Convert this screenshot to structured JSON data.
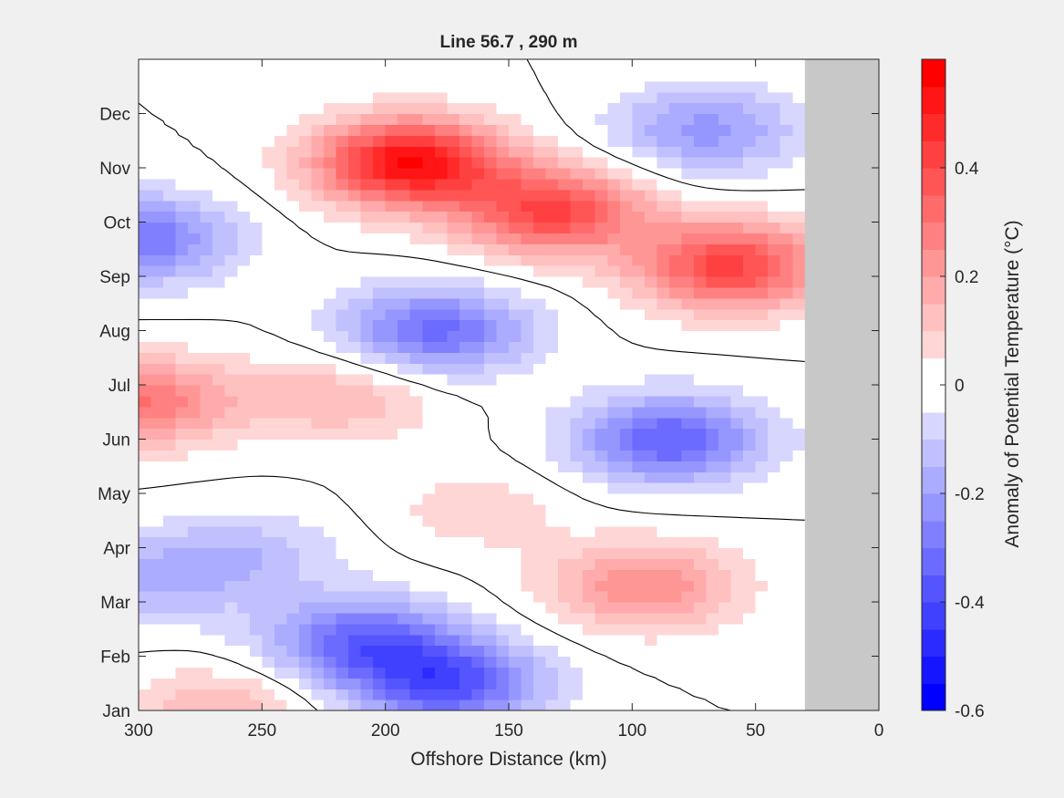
{
  "chart_data": {
    "type": "heatmap",
    "title": "Line 56.7 , 290 m",
    "xlabel": "Offshore Distance (km)",
    "ylabel": "",
    "x_reversed": true,
    "xlim": [
      300,
      0
    ],
    "x_ticks": [
      300,
      250,
      200,
      150,
      100,
      50,
      0
    ],
    "y_ticks": [
      "Jan",
      "Feb",
      "Mar",
      "Apr",
      "May",
      "Jun",
      "Jul",
      "Aug",
      "Sep",
      "Oct",
      "Nov",
      "Dec"
    ],
    "data_extent_km": [
      300,
      30
    ],
    "no_data_region_km": [
      30,
      0
    ],
    "colorbar": {
      "label": "Anomaly of Potential Temperature (°C)",
      "clim": [
        -0.6,
        0.6
      ],
      "step": 0.05,
      "tick_values": [
        0.4,
        0.2,
        0,
        -0.2,
        -0.4,
        -0.6
      ],
      "tick_labels": [
        "0.4",
        "0.2",
        "0",
        "-0.2",
        "-0.4",
        "-0.6"
      ]
    },
    "contour_line_level": 0,
    "anomaly_features": [
      {
        "x_km": 190,
        "month": 10.1,
        "value": 0.55
      },
      {
        "x_km": 132,
        "month": 9.2,
        "value": 0.4
      },
      {
        "x_km": 60,
        "month": 8.2,
        "value": 0.42
      },
      {
        "x_km": 300,
        "month": 5.7,
        "value": 0.3
      },
      {
        "x_km": 218,
        "month": 5.8,
        "value": 0.15
      },
      {
        "x_km": 163,
        "month": 3.7,
        "value": 0.08
      },
      {
        "x_km": 95,
        "month": 2.3,
        "value": 0.25
      },
      {
        "x_km": 265,
        "month": 0.0,
        "value": 0.15
      },
      {
        "x_km": 300,
        "month": 8.7,
        "value": -0.3
      },
      {
        "x_km": 180,
        "month": 7.0,
        "value": -0.32
      },
      {
        "x_km": 70,
        "month": 10.7,
        "value": -0.22
      },
      {
        "x_km": 85,
        "month": 5.0,
        "value": -0.35
      },
      {
        "x_km": 210,
        "month": 1.3,
        "value": -0.32
      },
      {
        "x_km": 175,
        "month": 0.5,
        "value": -0.38
      },
      {
        "x_km": 295,
        "month": 2.4,
        "value": -0.15
      },
      {
        "x_km": 255,
        "month": 2.9,
        "value": -0.12
      }
    ]
  },
  "colors": {
    "figure_bg": "#f0f0f0",
    "nodata_fill": "#c8c8c8",
    "positive_max": "#ff0000",
    "negative_max": "#0000ff",
    "neutral": "#ffffff",
    "contour": "#000000"
  }
}
